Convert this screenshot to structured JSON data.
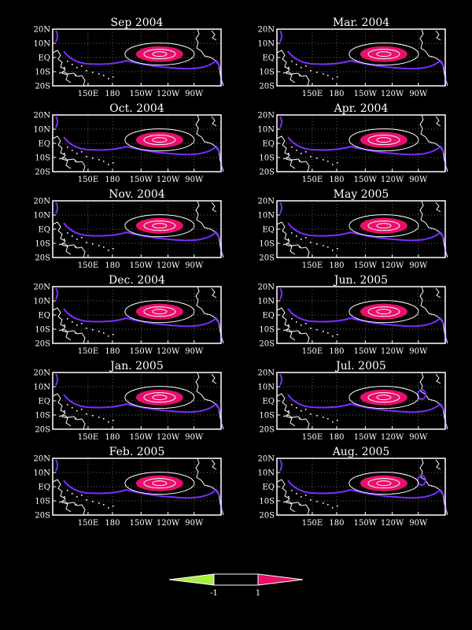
{
  "colors": {
    "background": "#000000",
    "frame": "#ffffff",
    "coast": "#ffffff",
    "zero_contour": "#7a2cff",
    "positive_fill": "#e8106a",
    "negative_fill": "#a8ee40",
    "contour": "#ffffff"
  },
  "lat_labels": [
    "20N",
    "10N",
    "EQ",
    "10S",
    "20S"
  ],
  "lon_labels": [
    "150E",
    "180",
    "150W",
    "120W",
    "90W"
  ],
  "panels": [
    {
      "id": "sep-2004",
      "title": "Sep 2004",
      "east_pool": false
    },
    {
      "id": "mar-2004",
      "title": "Mar. 2004",
      "east_pool": false
    },
    {
      "id": "oct-2004",
      "title": "Oct. 2004",
      "east_pool": false
    },
    {
      "id": "apr-2004",
      "title": "Apr. 2004",
      "east_pool": false
    },
    {
      "id": "nov-2004",
      "title": "Nov. 2004",
      "east_pool": false
    },
    {
      "id": "may-2005",
      "title": "May 2005",
      "east_pool": false
    },
    {
      "id": "dec-2004",
      "title": "Dec. 2004",
      "east_pool": false
    },
    {
      "id": "jun-2005",
      "title": "Jun. 2005",
      "east_pool": false
    },
    {
      "id": "jan-2005",
      "title": "Jan. 2005",
      "east_pool": false
    },
    {
      "id": "jul-2005",
      "title": "Jul. 2005",
      "east_pool": true
    },
    {
      "id": "feb-2005",
      "title": "Feb. 2005",
      "east_pool": false
    },
    {
      "id": "aug-2005",
      "title": "Aug. 2005",
      "east_pool": true
    }
  ],
  "colorbar": {
    "labels": [
      "-1",
      "1"
    ],
    "colors": [
      "#a8ee40",
      "#000000",
      "#e8106a"
    ]
  }
}
